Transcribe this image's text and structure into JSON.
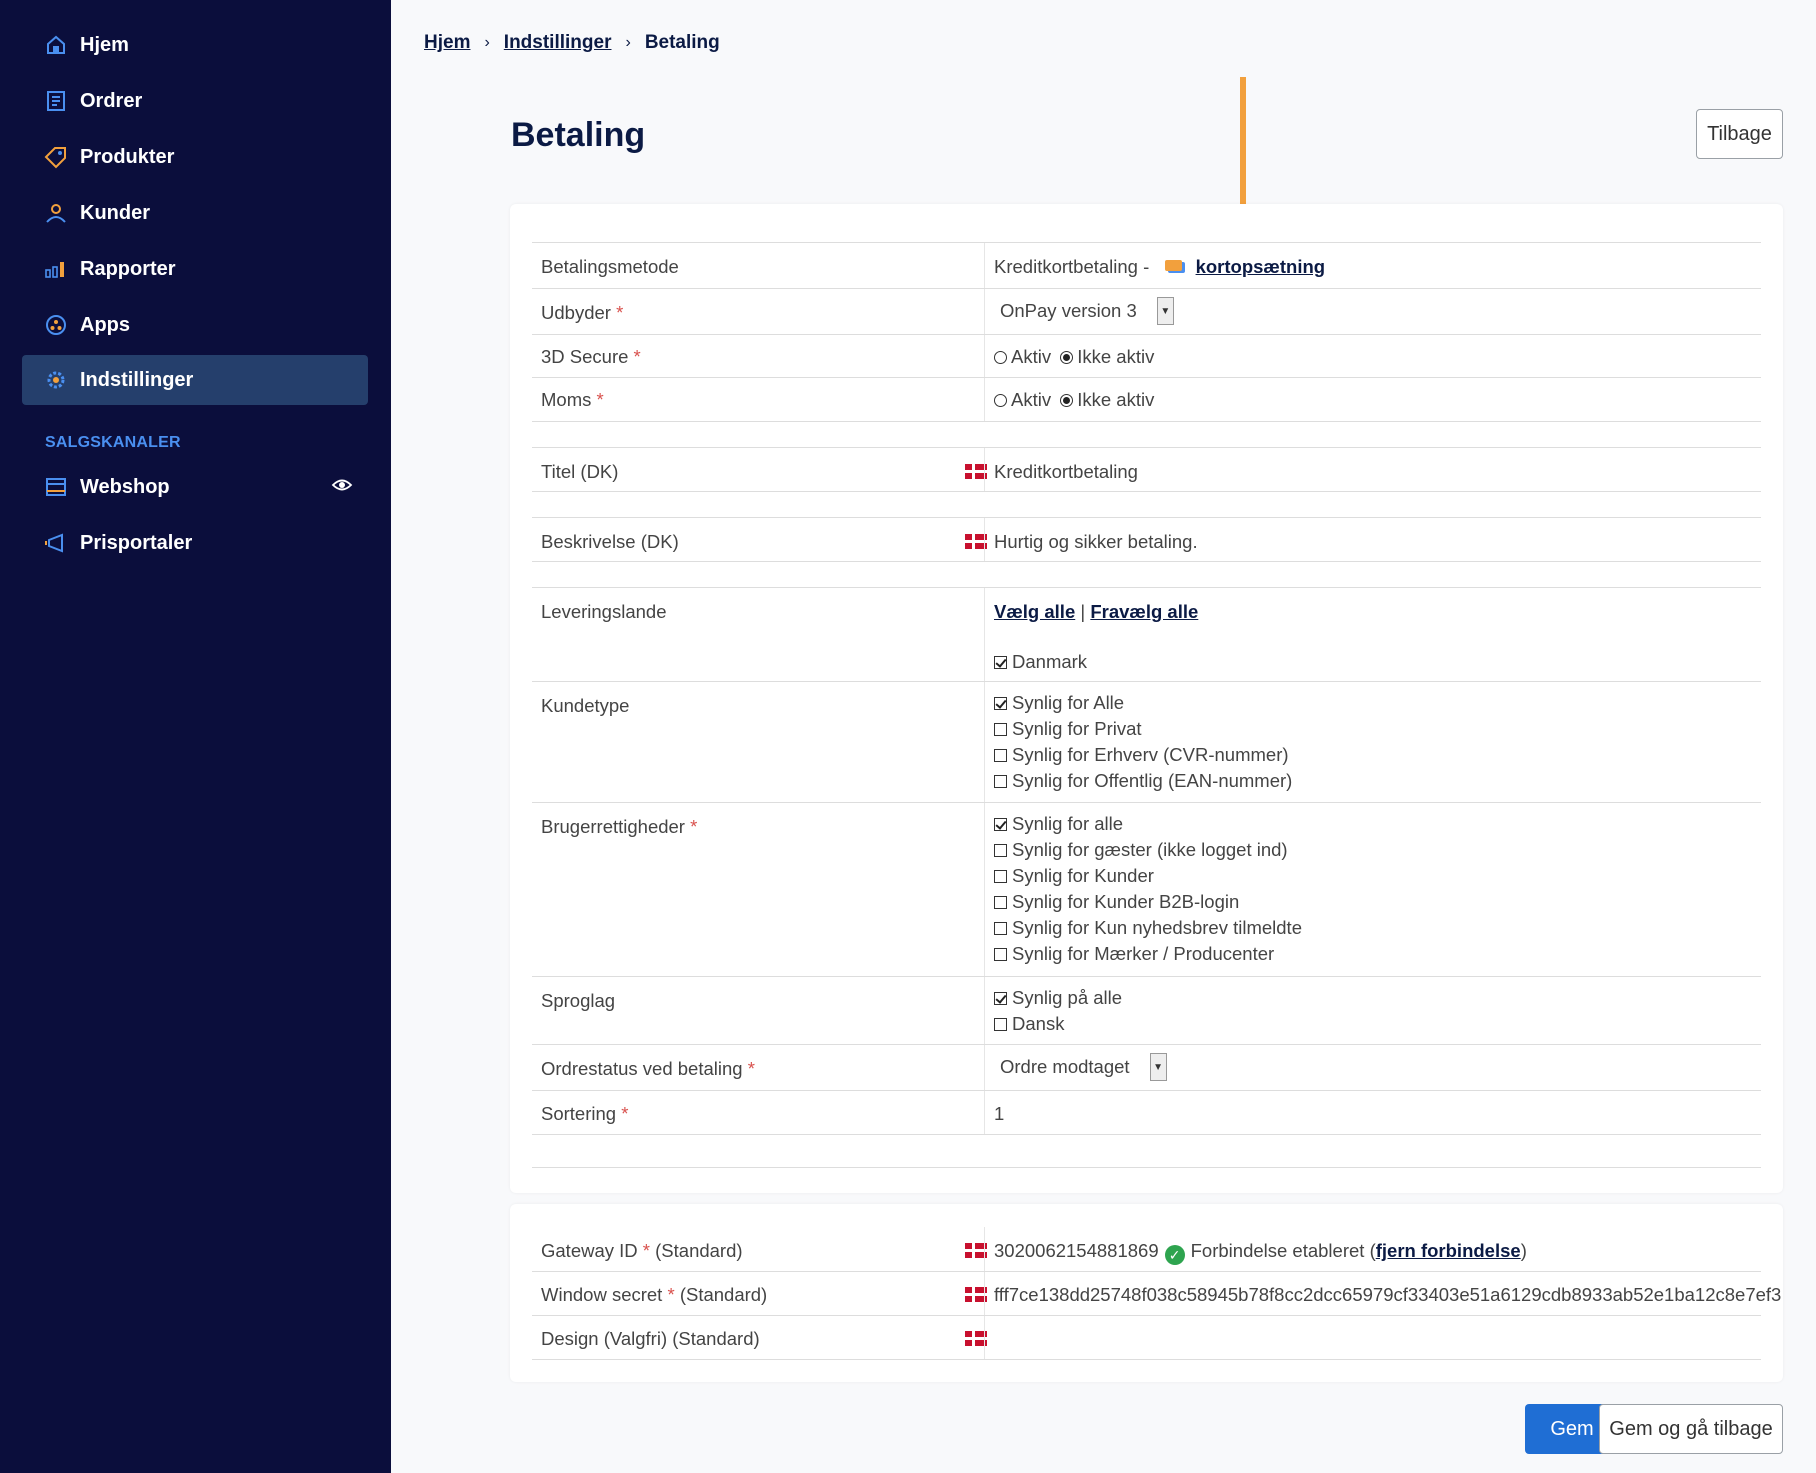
{
  "sidebar": {
    "items": [
      {
        "label": "Hjem",
        "icon": "home-icon"
      },
      {
        "label": "Ordrer",
        "icon": "orders-icon"
      },
      {
        "label": "Produkter",
        "icon": "tag-icon"
      },
      {
        "label": "Kunder",
        "icon": "user-icon"
      },
      {
        "label": "Rapporter",
        "icon": "bar-chart-icon"
      },
      {
        "label": "Apps",
        "icon": "apps-icon"
      },
      {
        "label": "Indstillinger",
        "icon": "gear-icon",
        "active": true
      }
    ],
    "section_label": "SALGSKANALER",
    "channels": [
      {
        "label": "Webshop",
        "icon": "webshop-icon"
      },
      {
        "label": "Prisportaler",
        "icon": "megaphone-icon"
      }
    ]
  },
  "breadcrumb": [
    "Hjem",
    "Indstillinger",
    "Betaling"
  ],
  "page": {
    "title": "Betaling",
    "back_label": "Tilbage",
    "save_label": "Gem",
    "save_back_label": "Gem og gå tilbage"
  },
  "form": {
    "betalingsmetode": {
      "label": "Betalingsmetode",
      "value": "Kreditkortbetaling -",
      "link": "kortopsætning"
    },
    "udbyder": {
      "label": "Udbyder",
      "value": "OnPay version 3"
    },
    "secure3d": {
      "label": "3D Secure",
      "opt1": "Aktiv",
      "opt2": "Ikke aktiv"
    },
    "moms": {
      "label": "Moms",
      "opt1": "Aktiv",
      "opt2": "Ikke aktiv"
    },
    "titel": {
      "label": "Titel (DK)",
      "value": "Kreditkortbetaling"
    },
    "beskrivelse": {
      "label": "Beskrivelse (DK)",
      "value": "Hurtig og sikker betaling."
    },
    "leveringslande": {
      "label": "Leveringslande",
      "select_all": "Vælg alle",
      "sep": "|",
      "deselect_all": "Fravælg alle",
      "countries": [
        "Danmark"
      ]
    },
    "kundetype": {
      "label": "Kundetype",
      "options": [
        "Synlig for Alle",
        "Synlig for Privat",
        "Synlig for Erhverv (CVR-nummer)",
        "Synlig for Offentlig (EAN-nummer)"
      ]
    },
    "brugerrettigheder": {
      "label": "Brugerrettigheder",
      "options": [
        "Synlig for alle",
        "Synlig for gæster (ikke logget ind)",
        "Synlig for Kunder",
        "Synlig for Kunder B2B-login",
        "Synlig for Kun nyhedsbrev tilmeldte",
        "Synlig for Mærker / Producenter"
      ]
    },
    "sproglag": {
      "label": "Sproglag",
      "options": [
        "Synlig på alle",
        "Dansk"
      ]
    },
    "ordrestatus": {
      "label": "Ordrestatus ved betaling",
      "value": "Ordre modtaget"
    },
    "sortering": {
      "label": "Sortering",
      "value": "1"
    }
  },
  "gateway": {
    "gateway_id": {
      "label": "Gateway ID",
      "suffix": "(Standard)",
      "value": "3020062154881869",
      "status": "Forbindelse etableret (",
      "remove": "fjern forbindelse",
      "close": ")"
    },
    "window_secret": {
      "label": "Window secret",
      "suffix": "(Standard)",
      "value": "fff7ce138dd25748f038c58945b78f8cc2dcc65979cf33403e51a6129cdb8933ab52e1ba12c8e7ef3"
    },
    "design": {
      "label": "Design (Valgfri) (Standard)",
      "value": ""
    }
  },
  "colors": {
    "sidebar": "#0b0e3c",
    "active": "#253f6c",
    "accent": "#1f6ed4",
    "arrow": "#f2a03d"
  }
}
